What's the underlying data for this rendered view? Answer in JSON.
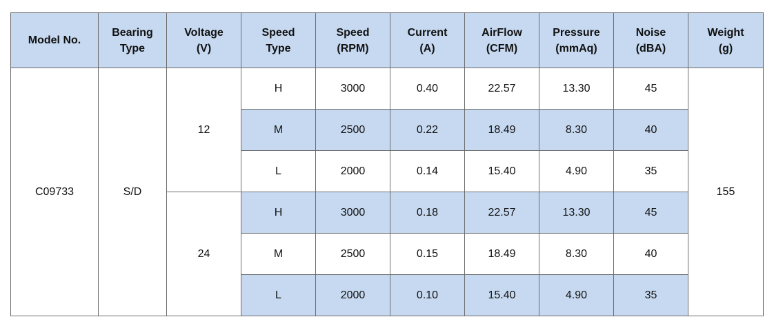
{
  "table": {
    "headers": [
      [
        "Model No."
      ],
      [
        "Bearing",
        "Type"
      ],
      [
        "Voltage",
        "(V)"
      ],
      [
        "Speed",
        "Type"
      ],
      [
        "Speed",
        "(RPM)"
      ],
      [
        "Current",
        "(A)"
      ],
      [
        "AirFlow",
        "(CFM)"
      ],
      [
        "Pressure",
        "(mmAq)"
      ],
      [
        "Noise",
        "(dBA)"
      ],
      [
        "Weight",
        "(g)"
      ]
    ],
    "model": "C09733",
    "bearing": "S/D",
    "weight": "155",
    "groups": [
      {
        "voltage": "12",
        "rows": [
          [
            "H",
            "3000",
            "0.40",
            "22.57",
            "13.30",
            "45"
          ],
          [
            "M",
            "2500",
            "0.22",
            "18.49",
            "8.30",
            "40"
          ],
          [
            "L",
            "2000",
            "0.14",
            "15.40",
            "4.90",
            "35"
          ]
        ]
      },
      {
        "voltage": "24",
        "rows": [
          [
            "H",
            "3000",
            "0.18",
            "22.57",
            "13.30",
            "45"
          ],
          [
            "M",
            "2500",
            "0.15",
            "18.49",
            "8.30",
            "40"
          ],
          [
            "L",
            "2000",
            "0.10",
            "15.40",
            "4.90",
            "35"
          ]
        ]
      }
    ]
  }
}
